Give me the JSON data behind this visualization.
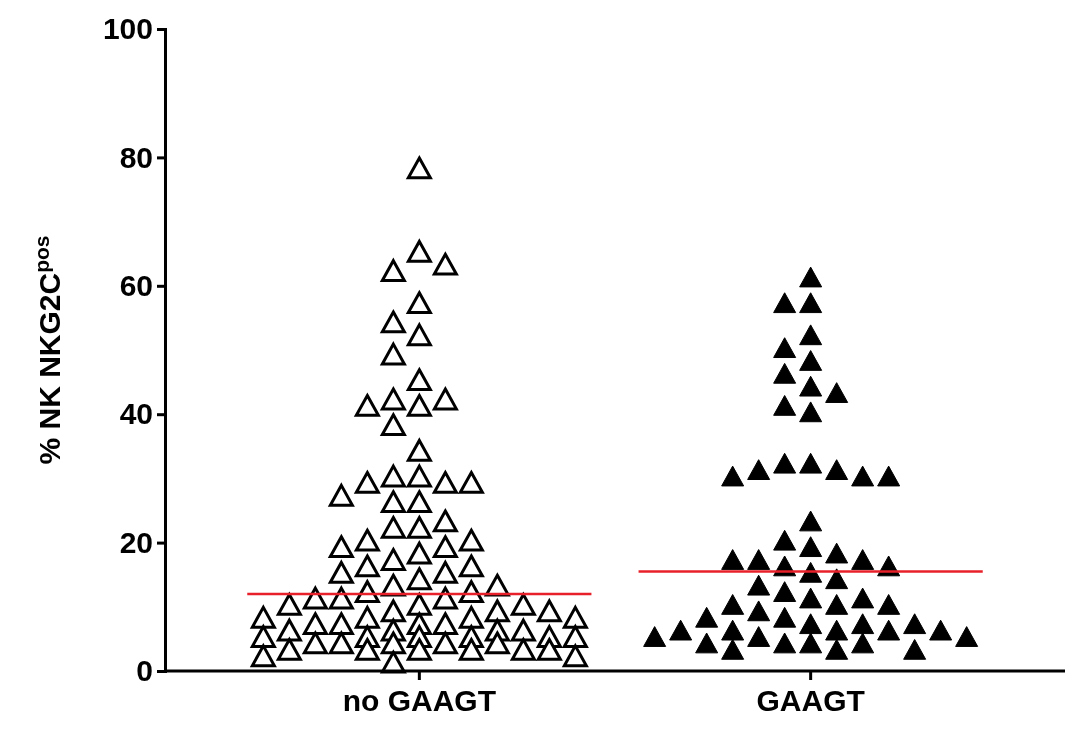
{
  "chart_data": {
    "type": "scatter",
    "ylabel": "% NK NKG2C$^{pos}$",
    "categories": [
      "no GAAGT",
      "GAAGT"
    ],
    "ylim": [
      0,
      100
    ],
    "yticks": [
      0,
      20,
      40,
      60,
      80,
      100
    ],
    "marker": "triangle",
    "grid": false,
    "series": [
      {
        "color": "#000000",
        "x": [
          "no GAAGT",
          "no GAAGT",
          "no GAAGT",
          "no GAAGT",
          "no GAAGT",
          "no GAAGT",
          "no GAAGT",
          "no GAAGT",
          "no GAAGT",
          "no GAAGT",
          "no GAAGT",
          "no GAAGT",
          "no GAAGT",
          "no GAAGT",
          "no GAAGT",
          "no GAAGT",
          "no GAAGT",
          "no GAAGT",
          "no GAAGT",
          "no GAAGT",
          "no GAAGT",
          "no GAAGT",
          "no GAAGT",
          "no GAAGT",
          "no GAAGT",
          "no GAAGT",
          "no GAAGT",
          "no GAAGT",
          "no GAAGT",
          "no GAAGT",
          "no GAAGT",
          "no GAAGT",
          "no GAAGT",
          "no GAAGT",
          "no GAAGT",
          "no GAAGT",
          "no GAAGT",
          "no GAAGT",
          "no GAAGT",
          "no GAAGT",
          "no GAAGT",
          "no GAAGT",
          "no GAAGT",
          "no GAAGT",
          "no GAAGT",
          "no GAAGT",
          "no GAAGT",
          "no GAAGT",
          "no GAAGT",
          "no GAAGT",
          "no GAAGT",
          "no GAAGT",
          "no GAAGT",
          "no GAAGT",
          "no GAAGT",
          "no GAAGT",
          "no GAAGT",
          "no GAAGT",
          "no GAAGT",
          "no GAAGT",
          "no GAAGT",
          "no GAAGT",
          "no GAAGT",
          "no GAAGT",
          "no GAAGT",
          "no GAAGT",
          "no GAAGT",
          "no GAAGT",
          "no GAAGT",
          "no GAAGT",
          "no GAAGT",
          "no GAAGT",
          "no GAAGT",
          "no GAAGT",
          "no GAAGT",
          "no GAAGT",
          "no GAAGT",
          "no GAAGT",
          "no GAAGT",
          "no GAAGT",
          "no GAAGT",
          "no GAAGT"
        ],
        "values": [
          78,
          65,
          62,
          63,
          57,
          54,
          52,
          49,
          45,
          42,
          41,
          42,
          41,
          38,
          34,
          30,
          30,
          29,
          29,
          29,
          27,
          26,
          26,
          23,
          22,
          22,
          20,
          20,
          19,
          19,
          18,
          17,
          16,
          16,
          15,
          15,
          14,
          13,
          13,
          12,
          12,
          11,
          11,
          11,
          10,
          10,
          10,
          9,
          9,
          9,
          8,
          8,
          8,
          8,
          7,
          7,
          7,
          7,
          6,
          6,
          6,
          6,
          5,
          5,
          5,
          5,
          5,
          5,
          4,
          4,
          4,
          4,
          4,
          3,
          3,
          3,
          3,
          3,
          3,
          2,
          2,
          1
        ]
      },
      {
        "color": "#000000",
        "x": [
          "GAAGT",
          "GAAGT",
          "GAAGT",
          "GAAGT",
          "GAAGT",
          "GAAGT",
          "GAAGT",
          "GAAGT",
          "GAAGT",
          "GAAGT",
          "GAAGT",
          "GAAGT",
          "GAAGT",
          "GAAGT",
          "GAAGT",
          "GAAGT",
          "GAAGT",
          "GAAGT",
          "GAAGT",
          "GAAGT",
          "GAAGT",
          "GAAGT",
          "GAAGT",
          "GAAGT",
          "GAAGT",
          "GAAGT",
          "GAAGT",
          "GAAGT",
          "GAAGT",
          "GAAGT",
          "GAAGT",
          "GAAGT",
          "GAAGT",
          "GAAGT",
          "GAAGT",
          "GAAGT",
          "GAAGT",
          "GAAGT",
          "GAAGT",
          "GAAGT",
          "GAAGT",
          "GAAGT",
          "GAAGT",
          "GAAGT",
          "GAAGT",
          "GAAGT",
          "GAAGT",
          "GAAGT",
          "GAAGT",
          "GAAGT",
          "GAAGT",
          "GAAGT",
          "GAAGT",
          "GAAGT",
          "GAAGT",
          "GAAGT",
          "GAAGT"
        ],
        "values": [
          61,
          57,
          57,
          52,
          50,
          48,
          46,
          44,
          43,
          41,
          40,
          32,
          32,
          31,
          31,
          30,
          30,
          30,
          23,
          20,
          19,
          18,
          17,
          17,
          17,
          16,
          16,
          15,
          14,
          13,
          12,
          11,
          11,
          10,
          10,
          10,
          9,
          8,
          8,
          7,
          7,
          7,
          6,
          6,
          6,
          6,
          6,
          5,
          5,
          5,
          4,
          4,
          4,
          4,
          3,
          3,
          3
        ]
      }
    ],
    "ref_lines": [
      {
        "axis": "y",
        "value": 12,
        "color": "#e8202a"
      },
      {
        "axis": "y",
        "value": 15.5,
        "color": "#e8202a"
      }
    ]
  }
}
